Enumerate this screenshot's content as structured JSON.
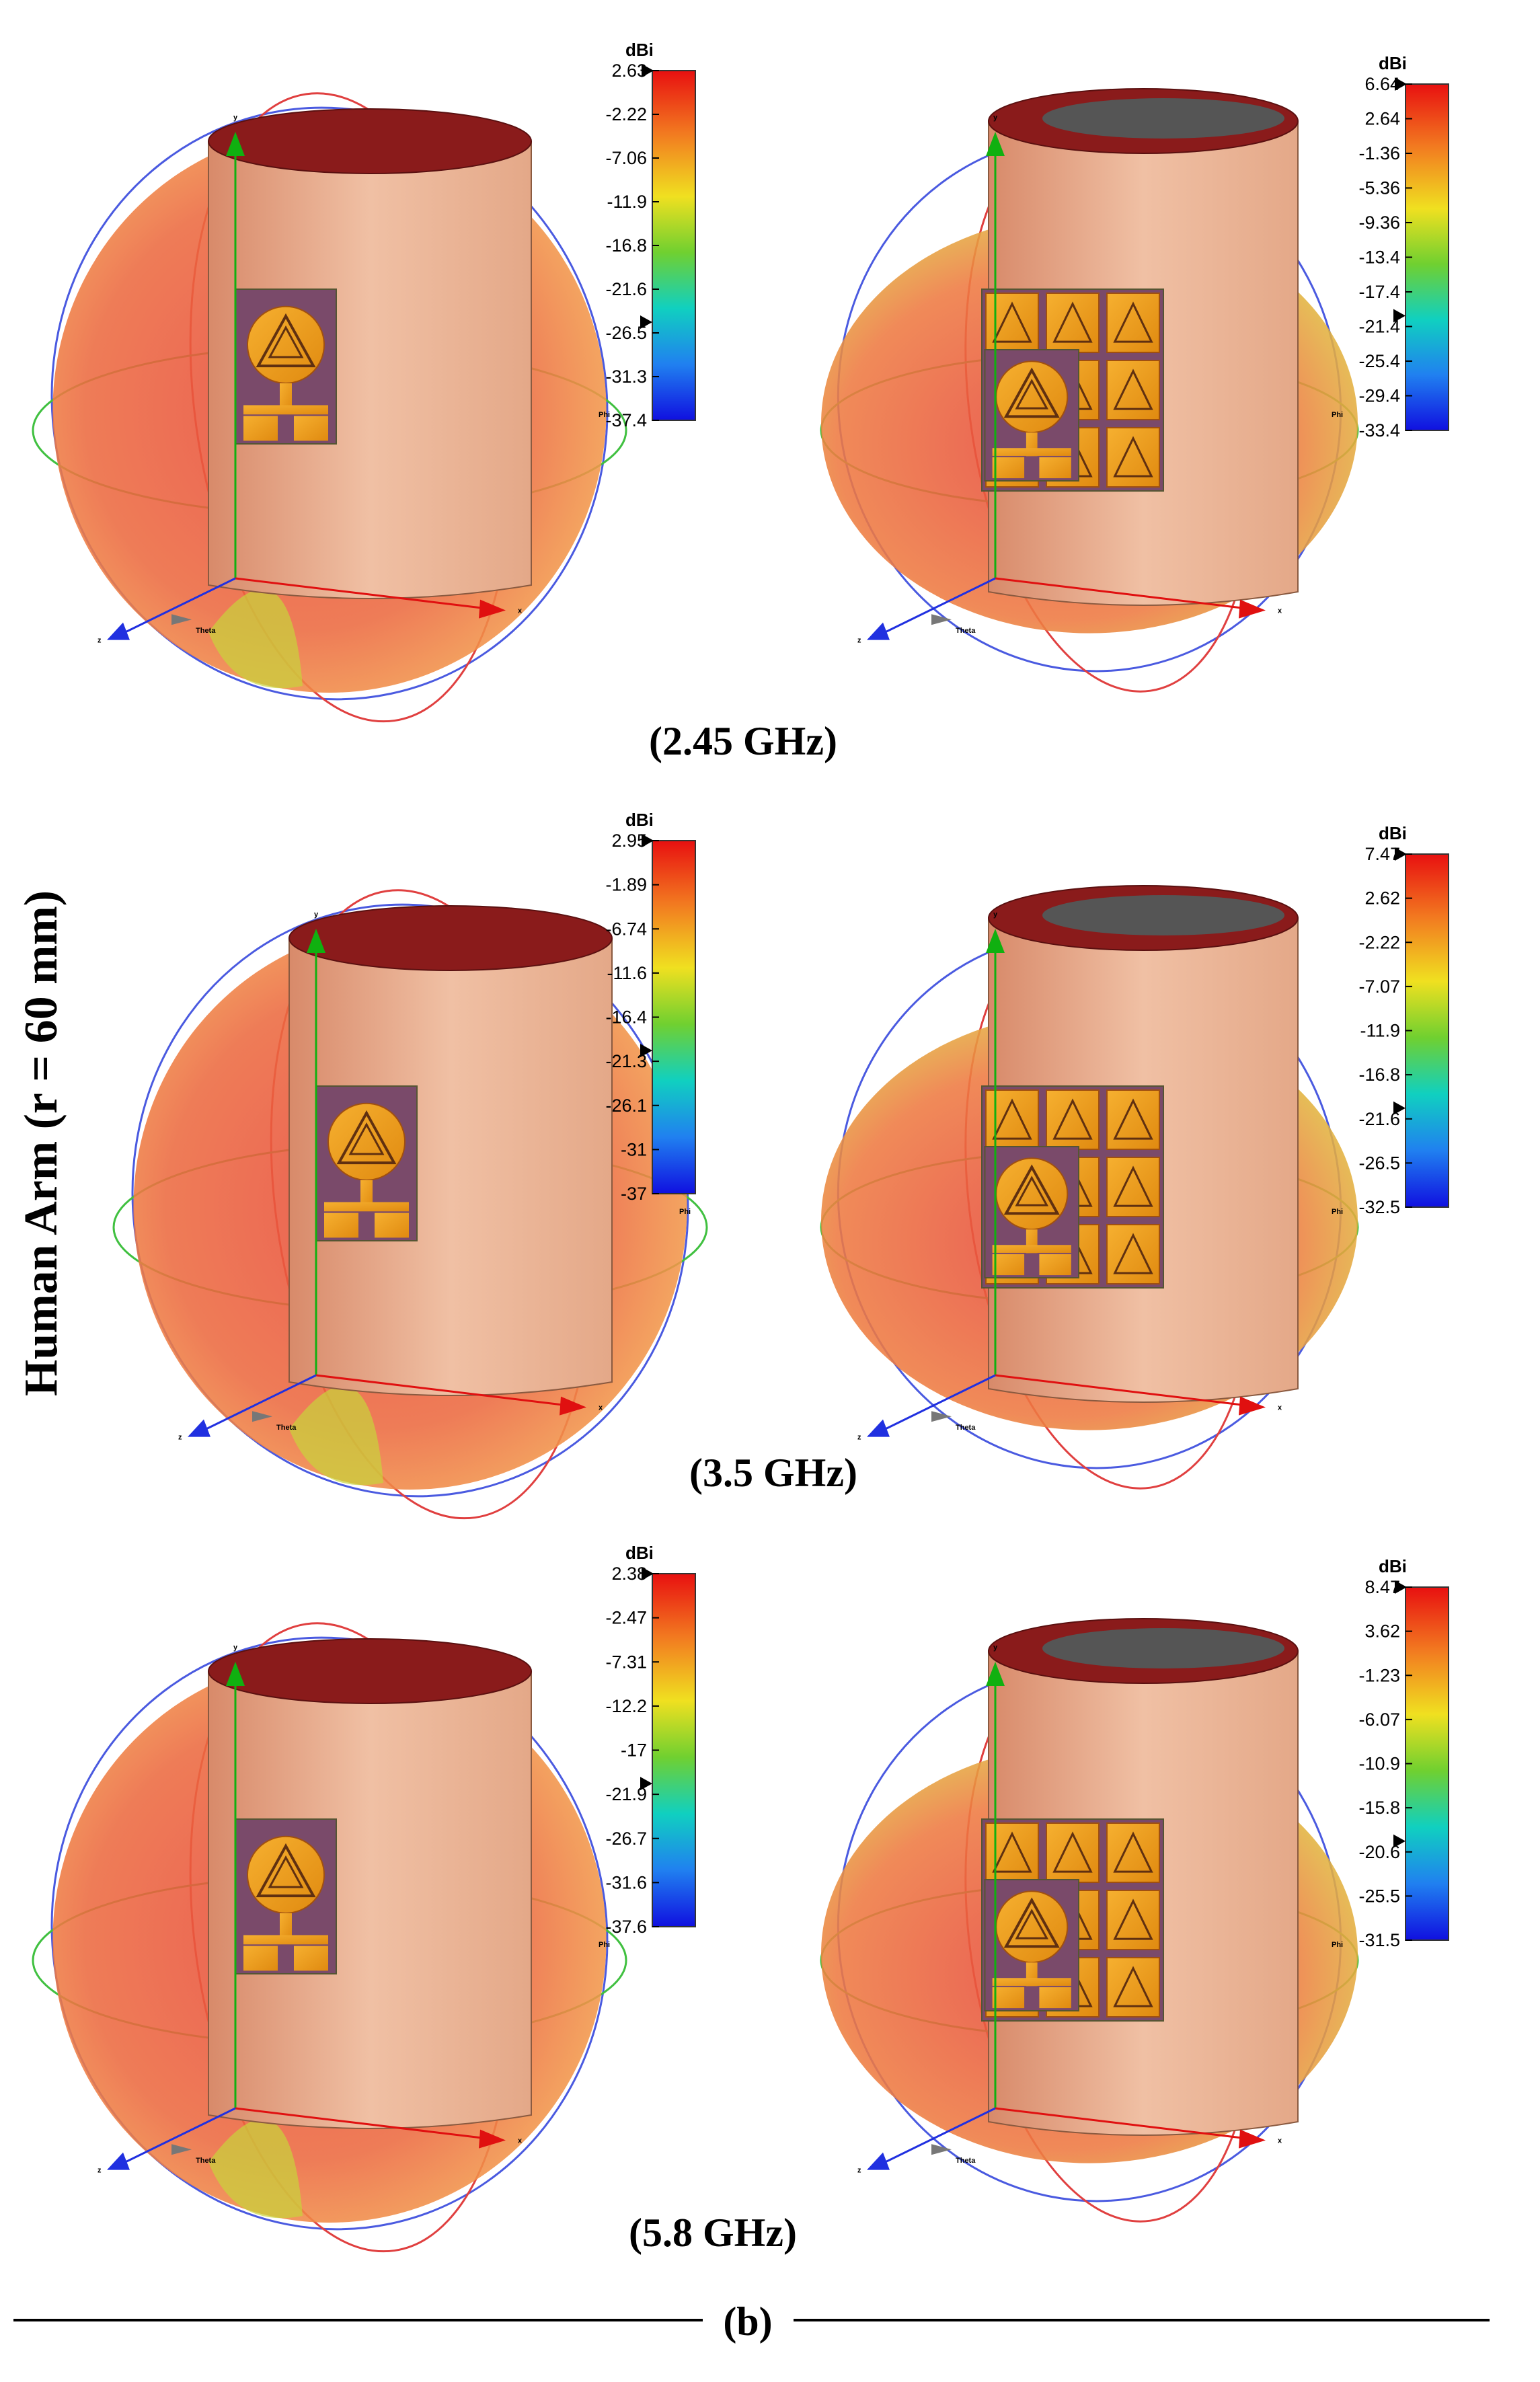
{
  "figure": {
    "side_label": "Human Arm (r = 60 mm)",
    "bottom_label": "(b)",
    "unit_label": "dBi",
    "axis_labels": {
      "x": "x",
      "y": "y",
      "z": "z",
      "theta": "Theta",
      "phi": "Phi"
    },
    "colors": {
      "pattern_main": "#e8553f",
      "pattern_edge": "#f28a4a",
      "pattern_weak": "#c7d43a",
      "arm_skin": "#e8a98a",
      "arm_top_dark": "#8a1b1b",
      "arm_core": "#555555",
      "patch_orange": "#f0a020",
      "patch_bg": "#7a4a6a",
      "circle_blue": "#4a5ae0",
      "circle_red": "#e04040",
      "circle_green": "#40c040",
      "arrow_red": "#e01010",
      "arrow_green": "#10b010",
      "arrow_blue": "#2030e0"
    }
  },
  "rows": [
    {
      "caption": "(2.45 GHz)",
      "panels": [
        {
          "name": "single-antenna",
          "scale": {
            "max_value": 2.63,
            "min_value": -37.4,
            "ticks": [
              "2.63",
              "-2.22",
              "-7.06",
              "-11.9",
              "-16.8",
              "-21.6",
              "-26.5",
              "-31.3",
              "-37.4"
            ],
            "marker_index": 6
          }
        },
        {
          "name": "antenna-with-metasurface",
          "scale": {
            "max_value": 6.64,
            "min_value": -33.4,
            "ticks": [
              "6.64",
              "2.64",
              "-1.36",
              "-5.36",
              "-9.36",
              "-13.4",
              "-17.4",
              "-21.4",
              "-25.4",
              "-29.4",
              "-33.4"
            ],
            "marker_index": 7
          }
        }
      ]
    },
    {
      "caption": "(3.5 GHz)",
      "panels": [
        {
          "name": "single-antenna",
          "scale": {
            "max_value": 2.95,
            "min_value": -37,
            "ticks": [
              "2.95",
              "-1.89",
              "-6.74",
              "-11.6",
              "-16.4",
              "-21.3",
              "-26.1",
              "-31",
              "-37"
            ],
            "marker_index": 5
          }
        },
        {
          "name": "antenna-with-metasurface",
          "scale": {
            "max_value": 7.47,
            "min_value": -32.5,
            "ticks": [
              "7.47",
              "2.62",
              "-2.22",
              "-7.07",
              "-11.9",
              "-16.8",
              "-21.6",
              "-26.5",
              "-32.5"
            ],
            "marker_index": 6
          }
        }
      ]
    },
    {
      "caption": "(5.8 GHz)",
      "panels": [
        {
          "name": "single-antenna",
          "scale": {
            "max_value": 2.38,
            "min_value": -37.6,
            "ticks": [
              "2.38",
              "-2.47",
              "-7.31",
              "-12.2",
              "-17",
              "-21.9",
              "-26.7",
              "-31.6",
              "-37.6"
            ],
            "marker_index": 5
          }
        },
        {
          "name": "antenna-with-metasurface",
          "scale": {
            "max_value": 8.47,
            "min_value": -31.5,
            "ticks": [
              "8.47",
              "3.62",
              "-1.23",
              "-6.07",
              "-10.9",
              "-15.8",
              "-20.6",
              "-25.5",
              "-31.5"
            ],
            "marker_index": 6
          }
        }
      ]
    }
  ]
}
